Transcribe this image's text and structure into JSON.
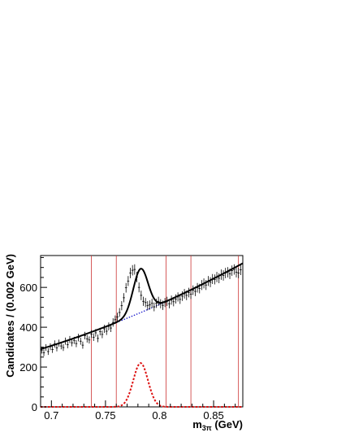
{
  "chart_data": {
    "type": "line",
    "title": "",
    "xlabel": "m",
    "xlabel_sub": "3π",
    "xlabel_unit": " (GeV)",
    "ylabel": "Candidates / (0.002 GeV)",
    "xlim": [
      0.69,
      0.877
    ],
    "ylim": [
      0,
      760
    ],
    "x_ticks": [
      0.7,
      0.75,
      0.8,
      0.85
    ],
    "x_tick_labels": [
      "0.7",
      "0.75",
      "0.8",
      "0.85"
    ],
    "y_ticks": [
      0,
      200,
      400,
      600
    ],
    "y_tick_labels": [
      "0",
      "200",
      "400",
      "600"
    ],
    "grid": false,
    "legend": "none",
    "vertical_lines": [
      0.737,
      0.76,
      0.806,
      0.829,
      0.873
    ],
    "colors": {
      "data": "#000000",
      "total_fit": "#000000",
      "background": "#1a1acc",
      "signal": "#dd1111",
      "markers": "#cc3333"
    },
    "series": [
      {
        "kind": "data",
        "x": [
          0.691,
          0.693,
          0.695,
          0.697,
          0.699,
          0.701,
          0.703,
          0.705,
          0.707,
          0.709,
          0.711,
          0.713,
          0.715,
          0.717,
          0.719,
          0.721,
          0.723,
          0.725,
          0.727,
          0.729,
          0.731,
          0.733,
          0.735,
          0.737,
          0.739,
          0.741,
          0.743,
          0.745,
          0.747,
          0.749,
          0.751,
          0.753,
          0.755,
          0.757,
          0.759,
          0.761,
          0.763,
          0.765,
          0.767,
          0.769,
          0.771,
          0.773,
          0.775,
          0.777,
          0.779,
          0.781,
          0.783,
          0.785,
          0.787,
          0.789,
          0.791,
          0.793,
          0.795,
          0.797,
          0.799,
          0.801,
          0.803,
          0.805,
          0.807,
          0.809,
          0.811,
          0.813,
          0.815,
          0.817,
          0.819,
          0.821,
          0.823,
          0.825,
          0.827,
          0.829,
          0.831,
          0.833,
          0.835,
          0.837,
          0.839,
          0.841,
          0.843,
          0.845,
          0.847,
          0.849,
          0.851,
          0.853,
          0.855,
          0.857,
          0.859,
          0.861,
          0.863,
          0.865,
          0.867,
          0.869,
          0.871,
          0.873,
          0.875
        ],
        "y": [
          285,
          272,
          298,
          278,
          302,
          288,
          316,
          296,
          320,
          306,
          298,
          330,
          312,
          338,
          322,
          334,
          318,
          348,
          330,
          310,
          358,
          342,
          336,
          366,
          350,
          372,
          344,
          378,
          364,
          392,
          380,
          404,
          396,
          424,
          438,
          452,
          474,
          508,
          548,
          598,
          632,
          672,
          686,
          690,
          652,
          600,
          560,
          530,
          524,
          508,
          512,
          520,
          502,
          520,
          530,
          518,
          510,
          524,
          530,
          518,
          536,
          528,
          542,
          552,
          540,
          556,
          568,
          560,
          574,
          566,
          586,
          580,
          598,
          594,
          612,
          620,
          612,
          632,
          626,
          642,
          640,
          652,
          646,
          664,
          660,
          672,
          676,
          668,
          684,
          690,
          676,
          672,
          688
        ],
        "err": [
          17,
          17,
          17,
          17,
          17,
          17,
          18,
          17,
          18,
          17,
          17,
          18,
          18,
          18,
          18,
          18,
          18,
          19,
          18,
          18,
          19,
          19,
          18,
          19,
          19,
          19,
          19,
          19,
          19,
          20,
          19,
          20,
          20,
          21,
          21,
          21,
          22,
          23,
          23,
          24,
          25,
          26,
          26,
          26,
          26,
          25,
          24,
          23,
          23,
          23,
          23,
          23,
          22,
          23,
          23,
          23,
          23,
          23,
          23,
          23,
          23,
          23,
          23,
          23,
          23,
          24,
          24,
          24,
          24,
          24,
          24,
          24,
          24,
          24,
          25,
          25,
          25,
          25,
          25,
          25,
          25,
          26,
          25,
          26,
          26,
          26,
          26,
          26,
          26,
          26,
          26,
          26,
          26
        ]
      },
      {
        "kind": "total_fit",
        "style": "solid"
      },
      {
        "kind": "background",
        "style": "dotted",
        "bg_coeffs": [
          290,
          1670,
          3400,
          0.69
        ]
      },
      {
        "kind": "signal",
        "style": "dashed",
        "signal": {
          "amplitude": 220,
          "mean": 0.7825,
          "sigma": 0.0068
        }
      }
    ]
  }
}
